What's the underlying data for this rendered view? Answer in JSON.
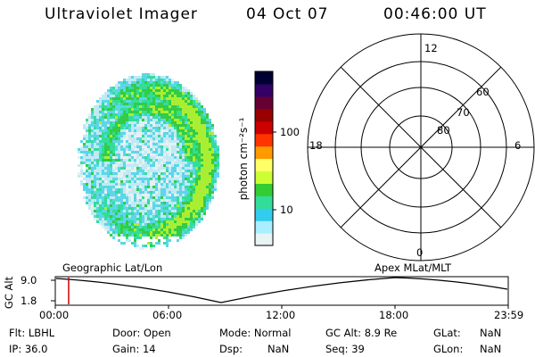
{
  "header": {
    "title": "Ultraviolet Imager",
    "date": "04 Oct 07",
    "time": "00:46:00 UT"
  },
  "colorbar": {
    "unit_label": "photon cm⁻²s⁻¹",
    "ticks": [
      "100",
      "10"
    ],
    "colors": [
      "#000033",
      "#330066",
      "#660033",
      "#990000",
      "#cc0000",
      "#ff3300",
      "#ff9900",
      "#ffff66",
      "#ccff33",
      "#33cc33",
      "#33dd99",
      "#33ccee",
      "#aaeeff",
      "#e8f4f4"
    ]
  },
  "polar_grid": {
    "mlt_labels": [
      "12",
      "18",
      "6",
      "0"
    ],
    "lat_labels": [
      "60",
      "70",
      "80"
    ]
  },
  "timeline": {
    "left_label": "Geographic Lat/Lon",
    "right_label": "Apex MLat/MLT",
    "y_axis_label": "GC Alt",
    "y_ticks": [
      "9.0",
      "1.8"
    ],
    "x_ticks": [
      "00:00",
      "06:00",
      "12:00",
      "18:00",
      "23:59"
    ],
    "marker_color": "#cc0000"
  },
  "status": {
    "filter": "Flt:  LBHL",
    "door": "Door: Open",
    "mode": "Mode:  Normal",
    "gc_alt": "GC Alt: 8.9 Re",
    "glat_label": "GLat:",
    "glat_value": "NaN",
    "ip": "IP: 36.0",
    "gain": "Gain: 14",
    "dsp_label": "Dsp:",
    "dsp_value": "NaN",
    "seq": "Seq: 39",
    "glon_label": "GLon:",
    "glon_value": "NaN"
  }
}
